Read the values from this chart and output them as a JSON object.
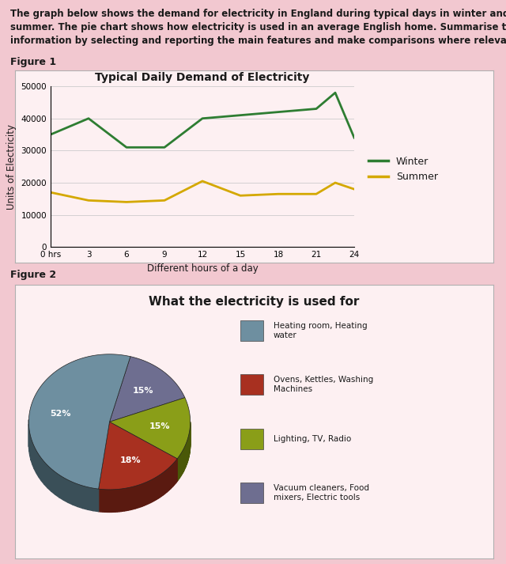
{
  "background_color": "#f2c8d0",
  "header_text_line1": "The graph below shows the demand for electricity in England during typical days in winter and",
  "header_text_line2": "summer. The pie chart shows how electricity is used in an average English home. Summarise the",
  "header_text_line3": "information by selecting and reporting the main features and make comparisons where relevant.",
  "header_fontsize": 8.5,
  "header_color": "#1a1a1a",
  "figure1_label": "Figure 1",
  "figure2_label": "Figure 2",
  "line_chart": {
    "title": "Typical Daily Demand of Electricity",
    "title_fontsize": 10,
    "xlabel": "Different hours of a day",
    "ylabel": "Units of Electricity",
    "xlabel_fontsize": 8.5,
    "ylabel_fontsize": 8.5,
    "xlim": [
      0,
      24
    ],
    "ylim": [
      0,
      50000
    ],
    "xticks": [
      0,
      3,
      6,
      9,
      12,
      15,
      18,
      21,
      24
    ],
    "xticklabels": [
      "0 hrs",
      "3",
      "6",
      "9",
      "12",
      "15",
      "18",
      "21",
      "24"
    ],
    "yticks": [
      0,
      10000,
      20000,
      30000,
      40000,
      50000
    ],
    "winter_color": "#2e7d32",
    "summer_color": "#d4a800",
    "winter_x": [
      0,
      3,
      6,
      9,
      12,
      15,
      18,
      21,
      22.5,
      24
    ],
    "winter_y": [
      35000,
      40000,
      31000,
      31000,
      40000,
      41000,
      42000,
      43000,
      48000,
      34000
    ],
    "summer_x": [
      0,
      3,
      6,
      9,
      12,
      15,
      18,
      21,
      22.5,
      24
    ],
    "summer_y": [
      17000,
      14500,
      14000,
      14500,
      20500,
      16000,
      16500,
      16500,
      20000,
      18000
    ],
    "legend_winter": "Winter",
    "legend_summer": "Summer",
    "box_facecolor": "#fdf0f2",
    "grid_color": "#cccccc"
  },
  "pie_chart": {
    "title": "What the electricity is used for",
    "title_fontsize": 11,
    "title_fontweight": "bold",
    "values": [
      52,
      18,
      15,
      15
    ],
    "pct_labels": [
      "52%",
      "18%",
      "15%",
      "15%"
    ],
    "colors": [
      "#6e8fa0",
      "#a83020",
      "#8a9e18",
      "#6e6e90"
    ],
    "shadow_colors": [
      "#3a4f58",
      "#5a1a10",
      "#4a5808",
      "#3a3a50"
    ],
    "legend_labels": [
      "Heating room, Heating\nwater",
      "Ovens, Kettles, Washing\nMachines",
      "Lighting, TV, Radio",
      "Vacuum cleaners, Food\nmixers, Electric tools"
    ],
    "box_facecolor": "#fdf0f2",
    "startangle": 75
  }
}
